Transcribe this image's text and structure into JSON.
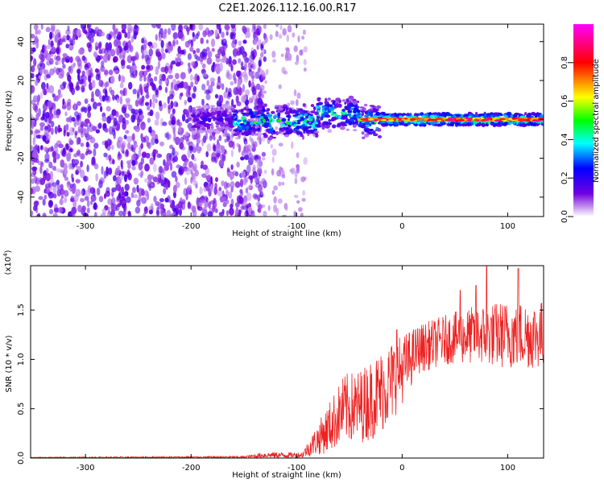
{
  "title": "C2E1.2026.112.16.00.R17",
  "chart_data": [
    {
      "type": "heatmap",
      "title": "C2E1.2026.112.16.00.R17",
      "xlabel": "Height of straight line (km)",
      "ylabel": "Frequency (Hz)",
      "xlim": [
        -352,
        134
      ],
      "ylim": [
        -50,
        49
      ],
      "xticks": [
        -300,
        -200,
        -100,
        0,
        100
      ],
      "yticks": [
        -40,
        -20,
        0,
        20,
        40
      ],
      "colorbar": {
        "label": "Normalized spectral amplitude",
        "range": [
          0,
          1
        ],
        "ticks": [
          0.0,
          0.2,
          0.4,
          0.6,
          0.8
        ],
        "colormap": [
          "#ffffff",
          "#7000e0",
          "#0000ff",
          "#00ffff",
          "#00ff00",
          "#ffff00",
          "#ff0000",
          "#ff00ff"
        ]
      },
      "description_regions": [
        {
          "x_range": [
            -352,
            -170
          ],
          "pattern": "broad scattered noise across all frequencies",
          "amplitude": 0.1
        },
        {
          "x_range": [
            -170,
            -20
          ],
          "pattern": "signal band near 0 Hz, width ~10 Hz",
          "amplitude": 0.4
        },
        {
          "x_range": [
            -20,
            134
          ],
          "pattern": "narrow signal line at 0 Hz",
          "amplitude": 0.9
        }
      ]
    },
    {
      "type": "line",
      "xlabel": "Height of straight line (km)",
      "ylabel": "SNR (10 * v/v)",
      "y_multiplier": "(x10",
      "y_exponent": "4",
      "y_multiplier_close": ")",
      "xlim": [
        -352,
        134
      ],
      "ylim": [
        0,
        1.95
      ],
      "xticks": [
        -300,
        -200,
        -100,
        0,
        100
      ],
      "yticks": [
        0.0,
        0.5,
        1.0,
        1.5
      ],
      "ytick_labels": [
        "0.0",
        "0.5",
        "1.0",
        "1.5"
      ],
      "series": [
        {
          "name": "SNR",
          "color": "#ee2222",
          "envelope": [
            {
              "x": -352,
              "low": 0.0,
              "high": 0.01
            },
            {
              "x": -150,
              "low": 0.0,
              "high": 0.02
            },
            {
              "x": -130,
              "low": 0.0,
              "high": 0.06
            },
            {
              "x": -95,
              "low": 0.0,
              "high": 0.06
            },
            {
              "x": -85,
              "low": 0.02,
              "high": 0.25
            },
            {
              "x": -70,
              "low": 0.05,
              "high": 0.55
            },
            {
              "x": -55,
              "low": 0.15,
              "high": 0.85
            },
            {
              "x": -40,
              "low": 0.15,
              "high": 0.9
            },
            {
              "x": -25,
              "low": 0.2,
              "high": 1.05
            },
            {
              "x": -10,
              "low": 0.35,
              "high": 1.2
            },
            {
              "x": 0,
              "low": 0.55,
              "high": 1.25
            },
            {
              "x": 15,
              "low": 0.85,
              "high": 1.35
            },
            {
              "x": 40,
              "low": 0.95,
              "high": 1.45
            },
            {
              "x": 70,
              "low": 0.95,
              "high": 1.55
            },
            {
              "x": 100,
              "low": 0.9,
              "high": 1.6
            },
            {
              "x": 134,
              "low": 0.9,
              "high": 1.6
            }
          ],
          "peaks": [
            {
              "x": 80,
              "y": 1.95
            },
            {
              "x": 110,
              "y": 1.92
            },
            {
              "x": 70,
              "y": 1.75
            },
            {
              "x": 55,
              "y": 1.7
            },
            {
              "x": -5,
              "y": 1.3
            }
          ]
        }
      ]
    }
  ]
}
